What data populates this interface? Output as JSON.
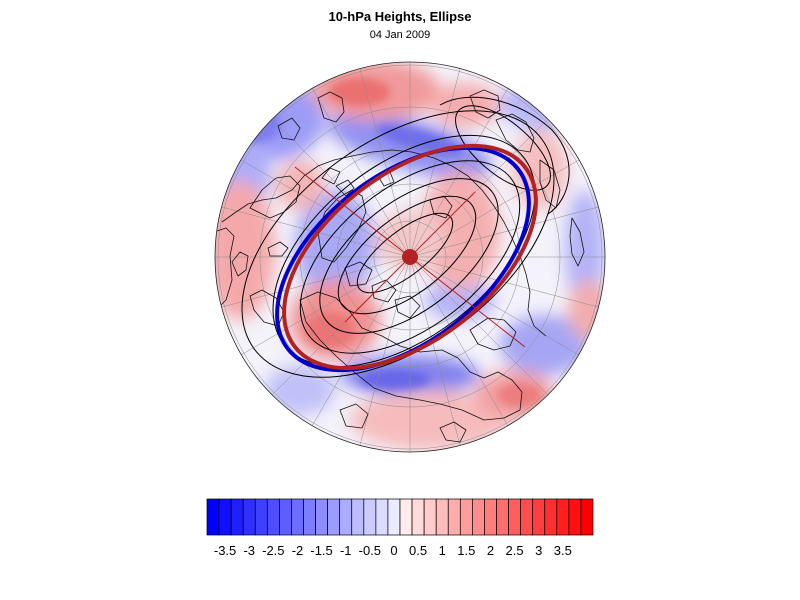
{
  "figure": {
    "title": "10-hPa Heights, Ellipse",
    "subtitle": "04 Jan 2009"
  },
  "colorbar": {
    "labels": [
      "-3.5",
      "-3",
      "-2.5",
      "-2",
      "-1.5",
      "-1",
      "-0.5",
      "0",
      "0.5",
      "1",
      "1.5",
      "2",
      "2.5",
      "3",
      "3.5"
    ],
    "min_color": "#0000ff",
    "mid_color": "#ffffff",
    "max_color": "#ff0000"
  },
  "map": {
    "projection": "polar stereographic (north pole)",
    "ellipse_color": "#b22222",
    "ellipse_inner_color": "#0000cc",
    "contour_color": "#000000",
    "anomaly_palette": {
      "positive": "#ff8080",
      "negative": "#8080ff"
    }
  }
}
